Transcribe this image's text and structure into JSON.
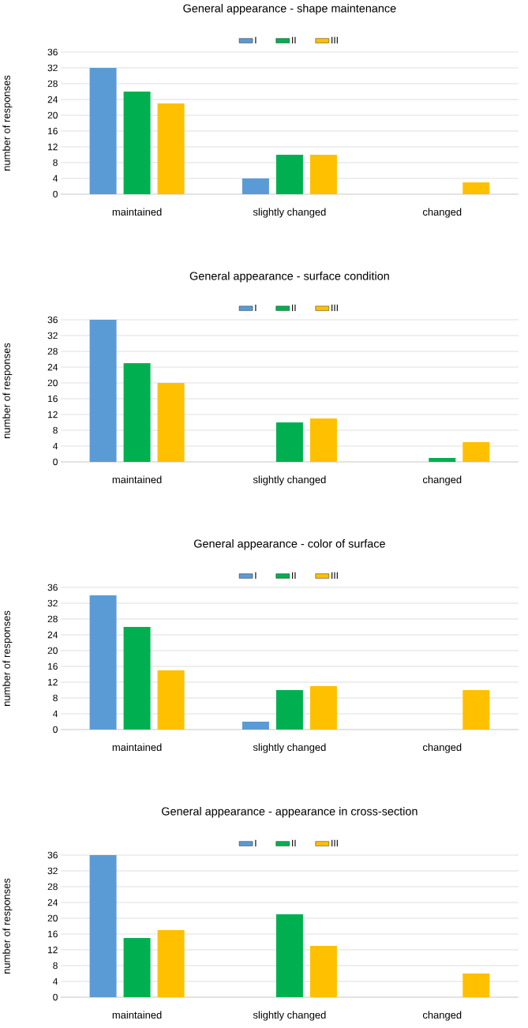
{
  "chart_data": [
    {
      "type": "bar",
      "title": "General appearance - shape maintenance",
      "ylabel": "number of responses",
      "categories": [
        "maintained",
        "slightly changed",
        "changed"
      ],
      "series": [
        {
          "name": "I",
          "color": "#5b9bd5",
          "values": [
            32,
            4,
            0
          ]
        },
        {
          "name": "II",
          "color": "#00b050",
          "values": [
            26,
            10,
            0
          ]
        },
        {
          "name": "III",
          "color": "#ffc000",
          "values": [
            23,
            10,
            3
          ]
        }
      ],
      "ylim": [
        0,
        36
      ],
      "yticks": [
        0,
        4,
        8,
        12,
        16,
        20,
        24,
        28,
        32,
        36
      ],
      "grid": "y",
      "legend": "top"
    },
    {
      "type": "bar",
      "title": "General appearance - surface condition",
      "ylabel": "number of responses",
      "categories": [
        "maintained",
        "slightly changed",
        "changed"
      ],
      "series": [
        {
          "name": "I",
          "color": "#5b9bd5",
          "values": [
            36,
            0,
            0
          ]
        },
        {
          "name": "II",
          "color": "#00b050",
          "values": [
            25,
            10,
            1
          ]
        },
        {
          "name": "III",
          "color": "#ffc000",
          "values": [
            20,
            11,
            5
          ]
        }
      ],
      "ylim": [
        0,
        36
      ],
      "yticks": [
        0,
        4,
        8,
        12,
        16,
        20,
        24,
        28,
        32,
        36
      ],
      "grid": "y",
      "legend": "top"
    },
    {
      "type": "bar",
      "title": "General appearance - color of surface",
      "ylabel": "number of responses",
      "categories": [
        "maintained",
        "slightly changed",
        "changed"
      ],
      "series": [
        {
          "name": "I",
          "color": "#5b9bd5",
          "values": [
            34,
            2,
            0
          ]
        },
        {
          "name": "II",
          "color": "#00b050",
          "values": [
            26,
            10,
            0
          ]
        },
        {
          "name": "III",
          "color": "#ffc000",
          "values": [
            15,
            11,
            10
          ]
        }
      ],
      "ylim": [
        0,
        36
      ],
      "yticks": [
        0,
        4,
        8,
        12,
        16,
        20,
        24,
        28,
        32,
        36
      ],
      "grid": "y",
      "legend": "top"
    },
    {
      "type": "bar",
      "title": "General appearance - appearance in cross-section",
      "ylabel": "number of responses",
      "categories": [
        "maintained",
        "slightly changed",
        "changed"
      ],
      "series": [
        {
          "name": "I",
          "color": "#5b9bd5",
          "values": [
            36,
            0,
            0
          ]
        },
        {
          "name": "II",
          "color": "#00b050",
          "values": [
            15,
            21,
            0
          ]
        },
        {
          "name": "III",
          "color": "#ffc000",
          "values": [
            17,
            13,
            6
          ]
        }
      ],
      "ylim": [
        0,
        36
      ],
      "yticks": [
        0,
        4,
        8,
        12,
        16,
        20,
        24,
        28,
        32,
        36
      ],
      "grid": "y",
      "legend": "top"
    }
  ]
}
